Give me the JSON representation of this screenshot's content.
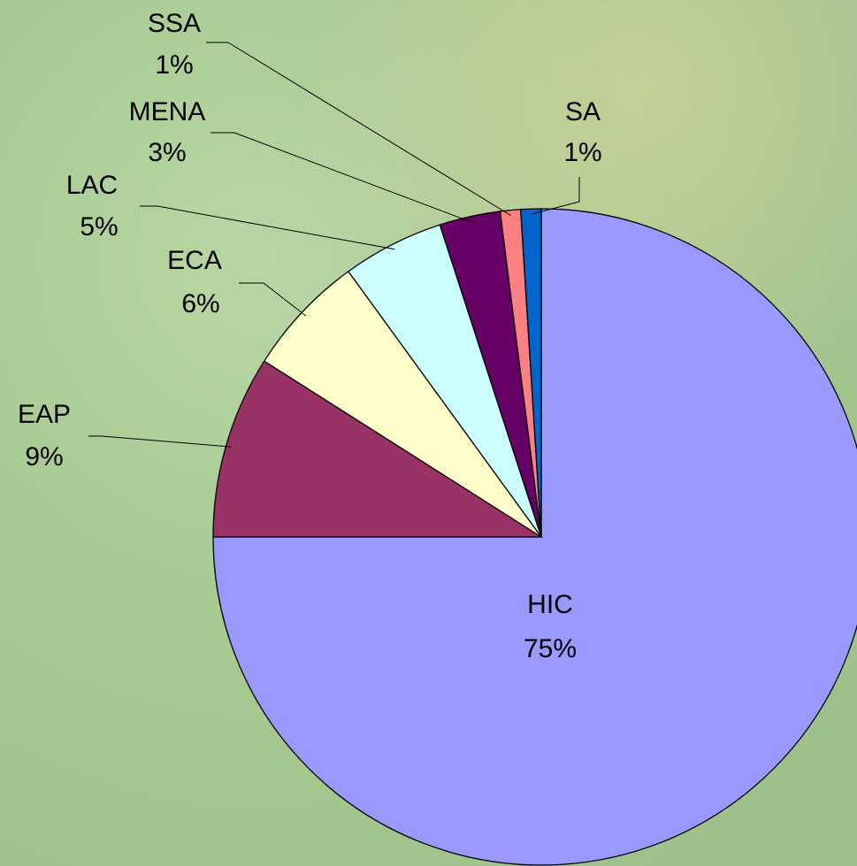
{
  "chart_data": {
    "type": "pie",
    "categories": [
      "HIC",
      "EAP",
      "ECA",
      "LAC",
      "MENA",
      "SSA",
      "SA"
    ],
    "values": [
      75,
      9,
      6,
      5,
      3,
      1,
      1
    ],
    "value_labels": [
      "75%",
      "9%",
      "6%",
      "5%",
      "3%",
      "1%",
      "1%"
    ],
    "colors": [
      "#9999ff",
      "#993366",
      "#ffffcc",
      "#ccffff",
      "#660066",
      "#ff8080",
      "#0066cc"
    ]
  }
}
